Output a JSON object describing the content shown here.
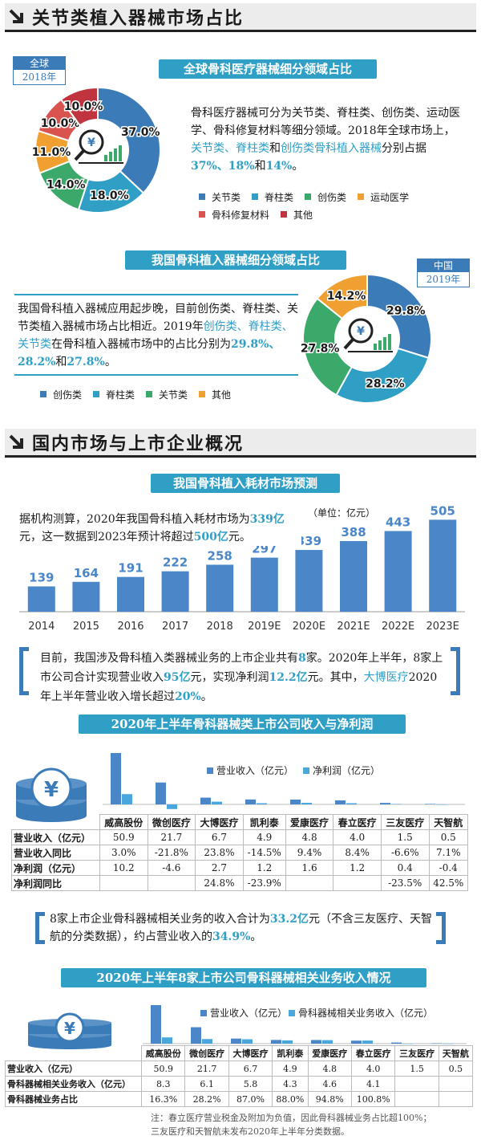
{
  "section1": {
    "title": "关节类植入器械市场占比"
  },
  "global": {
    "tag_top": "全球",
    "tag_year": "2018年",
    "banner": "全球骨科医疗器械细分领域占比",
    "para_1": "骨科医疗器械可分为关节类、脊柱类、创伤类、运动医学、骨科修复材料等细分领域。2018年全球市场上，",
    "para_hl": "关节类、脊柱类",
    "para_2": "和",
    "para_hl2": "创伤类骨科植入器械",
    "para_3": "分别占据",
    "para_v": "37%、18%",
    "para_4": "和",
    "para_v2": "14%",
    "para_5": "。"
  },
  "china_pie": {
    "banner": "我国骨科植入器械细分领域占比",
    "tag_top": "中国",
    "tag_year": "2019年",
    "para_1": "我国骨科植入器械应用起步晚，目前创伤类、脊柱类、关节类植入器械市场占比相近。2019年",
    "para_hl": "创伤类、脊柱类、关节类",
    "para_2": "在骨科植入器械市场中的占比分别为",
    "para_v": "29.8%、28.2%",
    "para_3": "和",
    "para_v2": "27.8%",
    "para_4": "。"
  },
  "section2": {
    "title": "国内市场与上市企业概况"
  },
  "forecast": {
    "banner": "我国骨科植入耗材市场预测",
    "para_1": "据机构测算，2020年我国骨科植入耗材市场为",
    "para_v": "339亿",
    "para_2": "元，这一数据到2023年预计将超过",
    "para_v2": "500亿",
    "para_3": "元。",
    "unit": "（单位：亿元）"
  },
  "listed": {
    "p1": "目前，我国涉及骨科植入类器械业务的上市企业共有",
    "v1": "8",
    "p2": "家。2020年上半年，8家上市公司合计实现营业收入",
    "v2": "95亿",
    "p3": "元，实现净利润",
    "v3": "12.2亿",
    "p4": "元。其中，",
    "hl": "大博医疗",
    "p5": "2020年上半年营业收入增长超过",
    "v4": "20%",
    "p6": "。"
  },
  "table1": {
    "banner": "2020年上半年骨科器械类上市公司收入与净利润",
    "companies": [
      "威高股份",
      "微创医疗",
      "大博医疗",
      "凯利泰",
      "爱康医疗",
      "春立医疗",
      "三友医疗",
      "天智航"
    ],
    "rows": [
      {
        "label": "营业收入（亿元）",
        "cells": [
          "50.9",
          "21.7",
          "6.7",
          "4.9",
          "4.8",
          "4.0",
          "1.5",
          "0.5"
        ]
      },
      {
        "label": "营业收入同比",
        "cells": [
          "3.0%",
          "-21.8%",
          "23.8%",
          "-14.5%",
          "9.4%",
          "8.4%",
          "-6.6%",
          "7.1%"
        ]
      },
      {
        "label": "净利润（亿元）",
        "cells": [
          "10.2",
          "-4.6",
          "2.7",
          "1.2",
          "1.6",
          "1.2",
          "0.4",
          "-0.4"
        ]
      },
      {
        "label": "净利润同比",
        "cells": [
          "",
          "",
          "24.8%",
          "-23.9%",
          "",
          "",
          "-23.5%",
          "42.5%"
        ]
      }
    ]
  },
  "summary2": {
    "p1": "8家上市企业骨科器械相关业务的收入合计为",
    "v1": "33.2亿",
    "p2": "元（不含三友医疗、天智航的分类数据），约占营业收入的",
    "v2": "34.9%",
    "p3": "。"
  },
  "table2": {
    "banner": "2020年上半年8家上市公司骨科器械相关业务收入情况",
    "companies": [
      "威高股份",
      "微创医疗",
      "大博医疗",
      "凯利泰",
      "爱康医疗",
      "春立医疗",
      "三友医疗",
      "天智航"
    ],
    "rows": [
      {
        "label": "营业收入（亿元）",
        "cells": [
          "50.9",
          "21.7",
          "6.7",
          "4.9",
          "4.8",
          "4.0",
          "1.5",
          "0.5"
        ]
      },
      {
        "label": "骨科器械相关业务收入（亿元）",
        "cells": [
          "8.3",
          "6.1",
          "5.8",
          "4.3",
          "4.6",
          "4.1",
          "",
          ""
        ]
      },
      {
        "label": "骨科器械业务占比",
        "cells": [
          "16.3%",
          "28.2%",
          "87.0%",
          "88.0%",
          "94.8%",
          "100.8%",
          "",
          ""
        ]
      }
    ]
  },
  "note": {
    "l1": "注：春立医疗营业税金及附加为负值，因此骨科器械业务占比超100%；",
    "l2": "三友医疗和天智航未发布2020年上半年分类数据。"
  },
  "colors": {
    "blue": "#3a7bb8",
    "sky": "#2f9fc6",
    "green": "#3aa96a",
    "orange": "#f0a030",
    "red": "#d9534f",
    "crimson": "#c0343f"
  },
  "chart_data": [
    {
      "type": "pie",
      "title": "全球骨科医疗器械细分领域占比",
      "categories": [
        "关节类",
        "脊柱类",
        "创伤类",
        "运动医学",
        "骨科修复材料",
        "其他"
      ],
      "values": [
        37.0,
        18.0,
        14.0,
        11.0,
        10.0,
        10.0
      ],
      "labels": [
        "37.0%",
        "18.0%",
        "14.0%",
        "11.0%",
        "10.0%",
        "10.0%"
      ],
      "colors": [
        "#3a7bb8",
        "#2f9fc6",
        "#3aa96a",
        "#f0a030",
        "#d9534f",
        "#c0343f"
      ]
    },
    {
      "type": "pie",
      "title": "我国骨科植入器械细分领域占比",
      "categories": [
        "创伤类",
        "脊柱类",
        "关节类",
        "其他"
      ],
      "values": [
        29.8,
        28.2,
        27.8,
        14.2
      ],
      "labels": [
        "29.8%",
        "28.2%",
        "27.8%",
        "14.2%"
      ],
      "colors": [
        "#3a7bb8",
        "#2f9fc6",
        "#3aa96a",
        "#f0a030"
      ]
    },
    {
      "type": "bar",
      "title": "我国骨科植入耗材市场预测",
      "categories": [
        "2014",
        "2015",
        "2016",
        "2017",
        "2018",
        "2019E",
        "2020E",
        "2021E",
        "2022E",
        "2023E"
      ],
      "values": [
        139,
        164,
        191,
        222,
        258,
        297,
        339,
        388,
        443,
        505
      ],
      "ylim": [
        0,
        520
      ]
    },
    {
      "type": "bar",
      "categories": [
        "威高股份",
        "微创医疗",
        "大博医疗",
        "凯利泰",
        "爱康医疗",
        "春立医疗",
        "三友医疗",
        "天智航"
      ],
      "series": [
        {
          "name": "营业收入（亿元）",
          "values": [
            50.9,
            21.7,
            6.7,
            4.9,
            4.8,
            4.0,
            1.5,
            0.5
          ]
        },
        {
          "name": "净利润（亿元）",
          "values": [
            10.2,
            -4.6,
            2.7,
            1.2,
            1.6,
            1.2,
            0.4,
            -0.4
          ]
        }
      ]
    },
    {
      "type": "bar",
      "categories": [
        "威高股份",
        "微创医疗",
        "大博医疗",
        "凯利泰",
        "爱康医疗",
        "春立医疗",
        "三友医疗",
        "天智航"
      ],
      "series": [
        {
          "name": "营业收入（亿元）",
          "values": [
            50.9,
            21.7,
            6.7,
            4.9,
            4.8,
            4.0,
            1.5,
            0.5
          ]
        },
        {
          "name": "骨科器械相关业务收入（亿元）",
          "values": [
            8.3,
            6.1,
            5.8,
            4.3,
            4.6,
            4.1,
            0,
            0
          ]
        }
      ]
    }
  ]
}
